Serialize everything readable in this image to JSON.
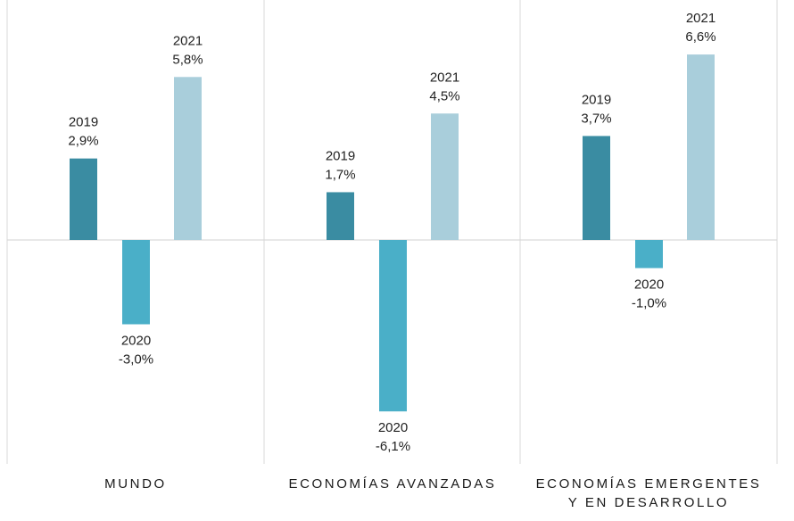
{
  "chart_data": {
    "type": "bar",
    "title": "",
    "xlabel": "",
    "ylabel": "",
    "ylim": [
      -6.1,
      6.6
    ],
    "grid": false,
    "legend": "none",
    "categories": [
      [
        "MUNDO"
      ],
      [
        "ECONOMÍAS AVANZADAS"
      ],
      [
        "ECONOMÍAS EMERGENTES",
        "Y EN DESARROLLO"
      ]
    ],
    "series": [
      {
        "year": "2019",
        "color": "#3a8ca2",
        "values": [
          2.9,
          1.7,
          3.7
        ],
        "labels": [
          "2,9%",
          "1,7%",
          "3,7%"
        ]
      },
      {
        "year": "2020",
        "color": "#4aafc8",
        "values": [
          -3.0,
          -6.1,
          -1.0
        ],
        "labels": [
          "-3,0%",
          "-6,1%",
          "-1,0%"
        ]
      },
      {
        "year": "2021",
        "color": "#a9cedb",
        "values": [
          5.8,
          4.5,
          6.6
        ],
        "labels": [
          "5,8%",
          "4,5%",
          "6,6%"
        ]
      }
    ]
  }
}
